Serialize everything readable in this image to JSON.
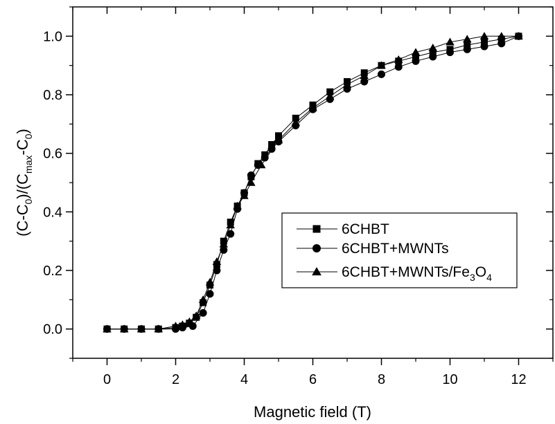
{
  "chart_data": {
    "type": "line",
    "title": "",
    "xlabel": "Magnetic field (T)",
    "ylabel": {
      "parts": [
        "(C-C",
        "0",
        ")/(C",
        "max",
        "-C",
        "0",
        ")"
      ]
    },
    "xlim": [
      -1,
      13
    ],
    "ylim": [
      -0.1,
      1.1
    ],
    "x_ticks": [
      0,
      2,
      4,
      6,
      8,
      10,
      12
    ],
    "x_tick_labels": [
      "0",
      "2",
      "4",
      "6",
      "8",
      "10",
      "12"
    ],
    "y_ticks": [
      0.0,
      0.2,
      0.4,
      0.6,
      0.8,
      1.0
    ],
    "y_tick_labels": [
      "0.0",
      "0.2",
      "0.4",
      "0.6",
      "0.8",
      "1.0"
    ],
    "grid": false,
    "legend_position": "center-right",
    "series": [
      {
        "name": "6CHBT",
        "marker": "square",
        "color": "#000000",
        "x": [
          0,
          0.5,
          1,
          1.5,
          2,
          2.2,
          2.4,
          2.6,
          2.8,
          3.0,
          3.2,
          3.4,
          3.6,
          3.8,
          4.0,
          4.2,
          4.4,
          4.6,
          4.8,
          5.0,
          5.5,
          6.0,
          6.5,
          7.0,
          7.5,
          8.0,
          8.5,
          9.0,
          9.5,
          10.0,
          10.5,
          11.0,
          11.5,
          12.0
        ],
        "y": [
          0.0,
          0.0,
          0.0,
          0.0,
          0.005,
          0.01,
          0.02,
          0.04,
          0.09,
          0.15,
          0.22,
          0.3,
          0.365,
          0.42,
          0.465,
          0.52,
          0.565,
          0.595,
          0.63,
          0.66,
          0.72,
          0.765,
          0.81,
          0.845,
          0.875,
          0.9,
          0.915,
          0.93,
          0.945,
          0.955,
          0.97,
          0.98,
          0.99,
          1.0
        ]
      },
      {
        "name": "6CHBT+MWNTs",
        "marker": "circle",
        "color": "#000000",
        "x": [
          0,
          0.5,
          1,
          1.5,
          2,
          2.2,
          2.5,
          2.8,
          3.0,
          3.2,
          3.4,
          3.6,
          3.8,
          4.0,
          4.2,
          4.4,
          4.6,
          4.8,
          5.0,
          5.5,
          6.0,
          6.5,
          7.0,
          7.5,
          8.0,
          8.5,
          9.0,
          9.5,
          10.0,
          10.5,
          11.0,
          11.5,
          12.0
        ],
        "y": [
          0.0,
          0.0,
          0.0,
          0.0,
          0.0,
          0.005,
          0.01,
          0.055,
          0.12,
          0.2,
          0.27,
          0.325,
          0.41,
          0.465,
          0.525,
          0.56,
          0.585,
          0.615,
          0.64,
          0.695,
          0.75,
          0.785,
          0.82,
          0.845,
          0.87,
          0.895,
          0.915,
          0.93,
          0.945,
          0.955,
          0.965,
          0.975,
          1.0
        ]
      },
      {
        "name": "6CHBT+MWNTs/Fe3O4",
        "name_parts": [
          "6CHBT+MWNTs/Fe",
          "3",
          "O",
          "4"
        ],
        "marker": "triangle",
        "color": "#000000",
        "x": [
          0,
          0.5,
          1,
          1.5,
          2,
          2.2,
          2.4,
          2.6,
          2.8,
          3.0,
          3.2,
          3.4,
          3.6,
          3.8,
          4.0,
          4.2,
          4.5,
          5.0,
          5.5,
          6.0,
          6.5,
          7.0,
          7.5,
          8.0,
          8.5,
          9.0,
          9.5,
          10.0,
          10.5,
          11.0,
          11.5,
          12.0
        ],
        "y": [
          0.0,
          0.0,
          0.0,
          0.0,
          0.01,
          0.015,
          0.025,
          0.045,
          0.1,
          0.16,
          0.23,
          0.29,
          0.355,
          0.42,
          0.455,
          0.5,
          0.56,
          0.645,
          0.705,
          0.755,
          0.795,
          0.835,
          0.865,
          0.9,
          0.92,
          0.945,
          0.96,
          0.98,
          0.99,
          1.0,
          1.0,
          1.0
        ]
      }
    ]
  }
}
